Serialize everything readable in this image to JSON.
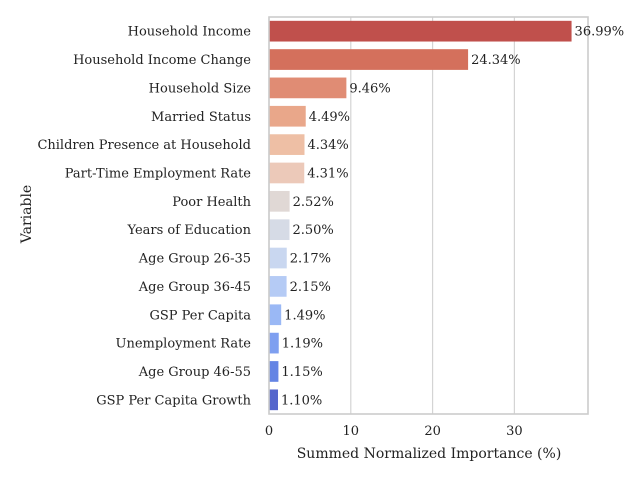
{
  "chart_data": {
    "type": "bar",
    "orientation": "horizontal",
    "categories": [
      "Household Income",
      "Household Income Change",
      "Household Size",
      "Married Status",
      "Children Presence at Household",
      "Part-Time Employment Rate",
      "Poor Health",
      "Years of Education",
      "Age Group 26-35",
      "Age Group 36-45",
      "GSP Per Capita",
      "Unemployment Rate",
      "Age Group 46-55",
      "GSP Per Capita Growth"
    ],
    "values": [
      36.99,
      24.34,
      9.46,
      4.49,
      4.34,
      4.31,
      2.52,
      2.5,
      2.17,
      2.15,
      1.49,
      1.19,
      1.15,
      1.1
    ],
    "value_labels": [
      "36.99%",
      "24.34%",
      "9.46%",
      "4.49%",
      "4.34%",
      "4.31%",
      "2.52%",
      "2.50%",
      "2.17%",
      "2.15%",
      "1.49%",
      "1.19%",
      "1.15%",
      "1.10%"
    ],
    "colors": [
      "#c0504c",
      "#d4705c",
      "#e08c74",
      "#e9a78a",
      "#eebfa5",
      "#ecc9b9",
      "#e0d8d5",
      "#d6dbe6",
      "#c9d7f0",
      "#b5cbf5",
      "#9ab8f5",
      "#7e9ff0",
      "#6484e4",
      "#5566cc"
    ],
    "title": "",
    "xlabel": "Summed Normalized Importance (%)",
    "ylabel": "Variable",
    "xlim": [
      0,
      39
    ],
    "xticks": [
      0,
      10,
      20,
      30
    ],
    "grid": true,
    "grid_color": "#d4d4d4",
    "frame_color": "#cccccc"
  }
}
